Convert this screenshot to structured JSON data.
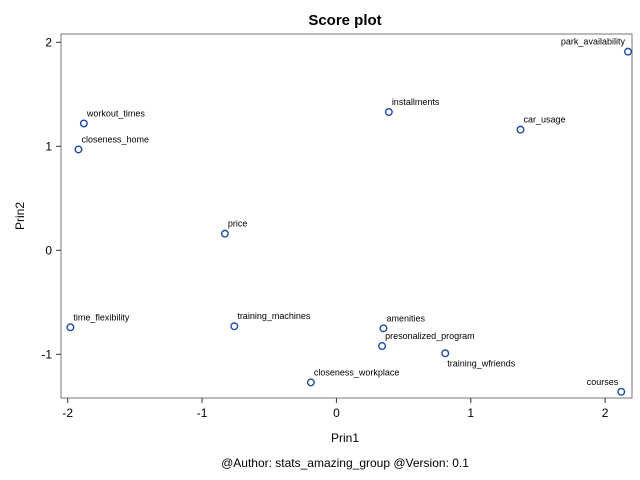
{
  "chart_data": {
    "type": "scatter",
    "title": "Score plot",
    "xlabel": "Prin1",
    "ylabel": "Prin2",
    "xlim": [
      -2.05,
      2.2
    ],
    "ylim": [
      -1.42,
      2.08
    ],
    "xticks": [
      -2,
      -1,
      0,
      1,
      2
    ],
    "yticks": [
      -1,
      0,
      1,
      2
    ],
    "grid": false,
    "marker_color": "#1e4c9c",
    "points": [
      {
        "label": "park_availability",
        "x": 2.17,
        "y": 1.91,
        "anchor": "end"
      },
      {
        "label": "installments",
        "x": 0.39,
        "y": 1.33,
        "anchor": "start"
      },
      {
        "label": "car_usage",
        "x": 1.37,
        "y": 1.16,
        "anchor": "start"
      },
      {
        "label": "workout_times",
        "x": -1.88,
        "y": 1.22,
        "anchor": "start"
      },
      {
        "label": "closeness_home",
        "x": -1.92,
        "y": 0.97,
        "anchor": "start"
      },
      {
        "label": "price",
        "x": -0.83,
        "y": 0.16,
        "anchor": "start"
      },
      {
        "label": "time_flexibility",
        "x": -1.98,
        "y": -0.74,
        "anchor": "start"
      },
      {
        "label": "training_machines",
        "x": -0.76,
        "y": -0.73,
        "anchor": "start"
      },
      {
        "label": "amenities",
        "x": 0.35,
        "y": -0.75,
        "anchor": "start"
      },
      {
        "label": "presonalized_program",
        "x": 0.34,
        "y": -0.92,
        "anchor": "start"
      },
      {
        "label": "training_wfriends",
        "x": 0.81,
        "y": -0.99,
        "anchor": "start-below"
      },
      {
        "label": "closeness_workplace",
        "x": -0.19,
        "y": -1.27,
        "anchor": "start"
      },
      {
        "label": "courses",
        "x": 2.12,
        "y": -1.36,
        "anchor": "end"
      }
    ]
  },
  "footnote": "@Author: stats_amazing_group @Version: 0.1"
}
